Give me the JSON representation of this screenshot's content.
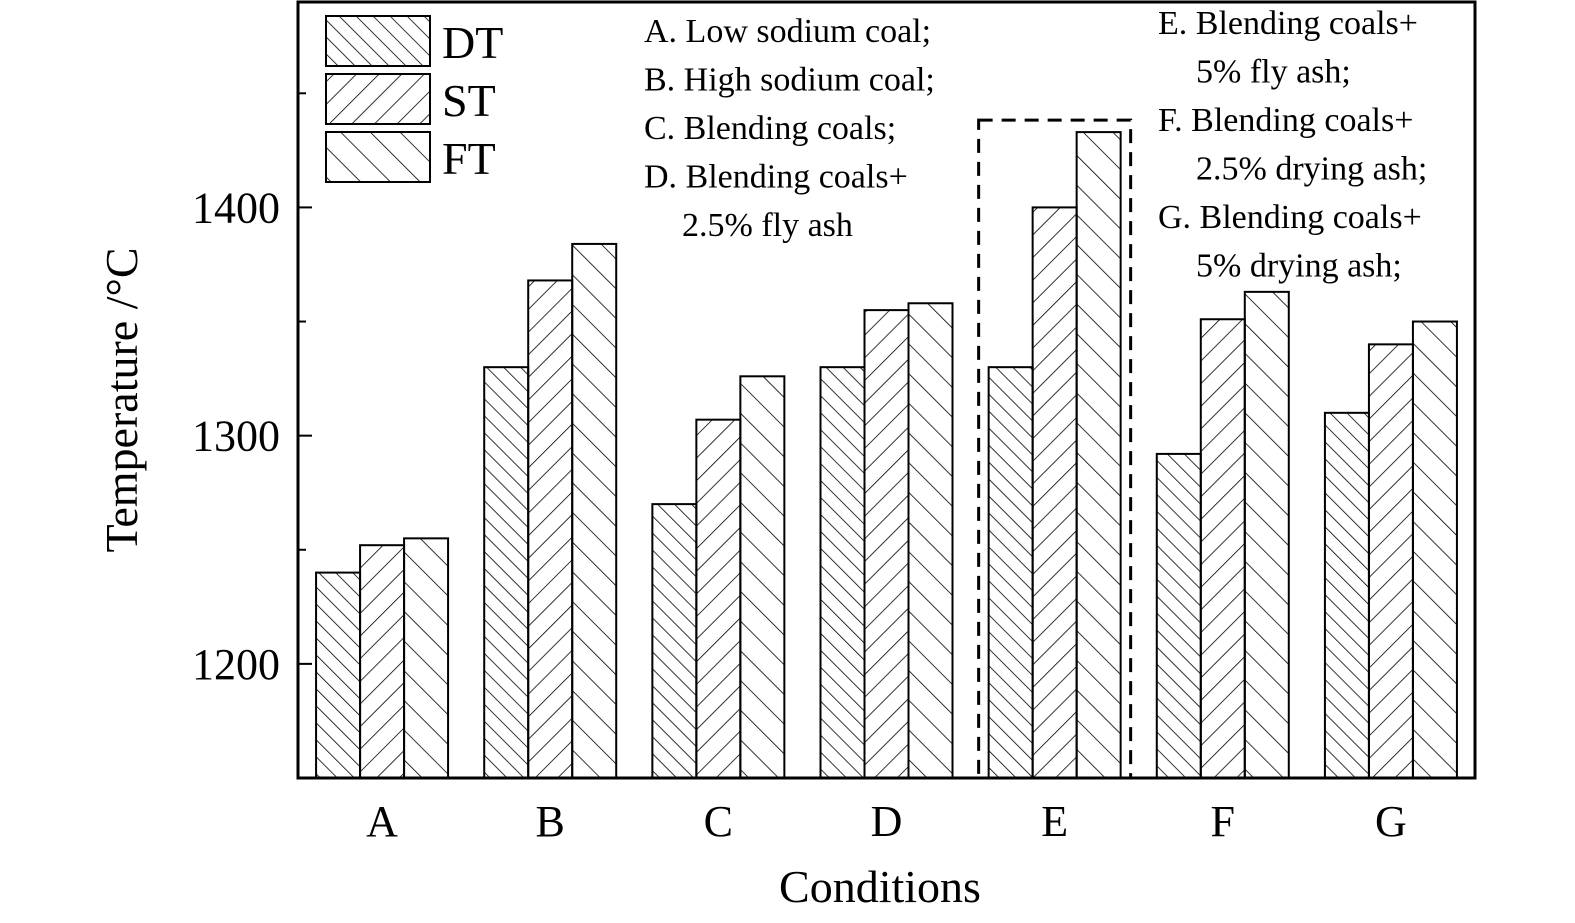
{
  "chart_data": {
    "type": "bar",
    "title": "",
    "xlabel": "Conditions",
    "ylabel": "Temperature /°C",
    "ylim": [
      1150,
      1490
    ],
    "yticks": [
      1200,
      1300,
      1400
    ],
    "categories": [
      "A",
      "B",
      "C",
      "D",
      "E",
      "F",
      "G"
    ],
    "series": [
      {
        "name": "DT",
        "pattern": "back-diagonal-dense",
        "values": [
          1240,
          1330,
          1270,
          1330,
          1330,
          1292,
          1310
        ]
      },
      {
        "name": "ST",
        "pattern": "forward-diagonal",
        "values": [
          1252,
          1368,
          1307,
          1355,
          1400,
          1351,
          1340
        ]
      },
      {
        "name": "FT",
        "pattern": "back-diagonal-wide",
        "values": [
          1255,
          1384,
          1326,
          1358,
          1433,
          1363,
          1350
        ]
      }
    ],
    "legend_position": "top-left",
    "highlight": {
      "category": "E",
      "style": "dashed box"
    },
    "grid": false,
    "annotations": [
      {
        "group": "left",
        "lines": [
          "A. Low sodium coal;",
          "B. High sodium coal;",
          "C. Blending coals;",
          "D. Blending coals+",
          "2.5% fly ash"
        ]
      },
      {
        "group": "right",
        "lines": [
          "E. Blending coals+",
          "5% fly ash;",
          "F. Blending coals+",
          "2.5% drying ash;",
          "G. Blending coals+",
          "5% drying ash;"
        ]
      }
    ],
    "colors": {
      "bar_fill": "#ffffff",
      "stroke": "#000000"
    }
  }
}
